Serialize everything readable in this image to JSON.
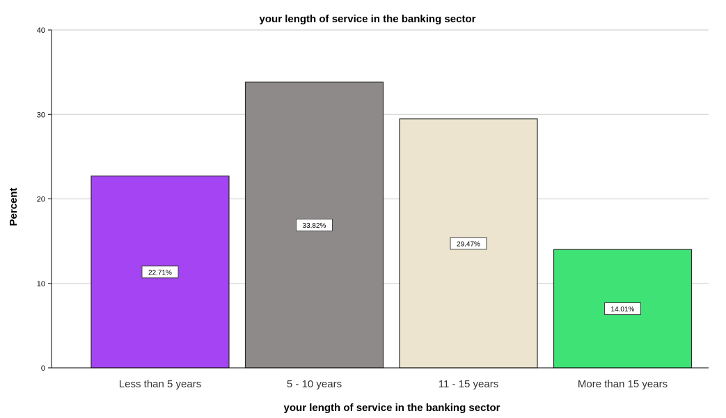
{
  "chart_data": {
    "type": "bar",
    "title": "your length of service in the banking sector",
    "xlabel": "your length of service in the banking sector",
    "ylabel": "Percent",
    "categories": [
      "Less than 5 years",
      "5 - 10 years",
      "11 - 15 years",
      "More than 15 years"
    ],
    "values": [
      22.71,
      33.82,
      29.47,
      14.01
    ],
    "value_labels": [
      "22.71%",
      "33.82%",
      "29.47%",
      "14.01%"
    ],
    "colors": [
      "#a444f2",
      "#8f8a8a",
      "#ece4ce",
      "#3ee275"
    ],
    "ylim": [
      0,
      40
    ],
    "yticks": [
      "0",
      "10",
      "20",
      "30",
      "40"
    ],
    "grid": true,
    "legend": "none"
  }
}
